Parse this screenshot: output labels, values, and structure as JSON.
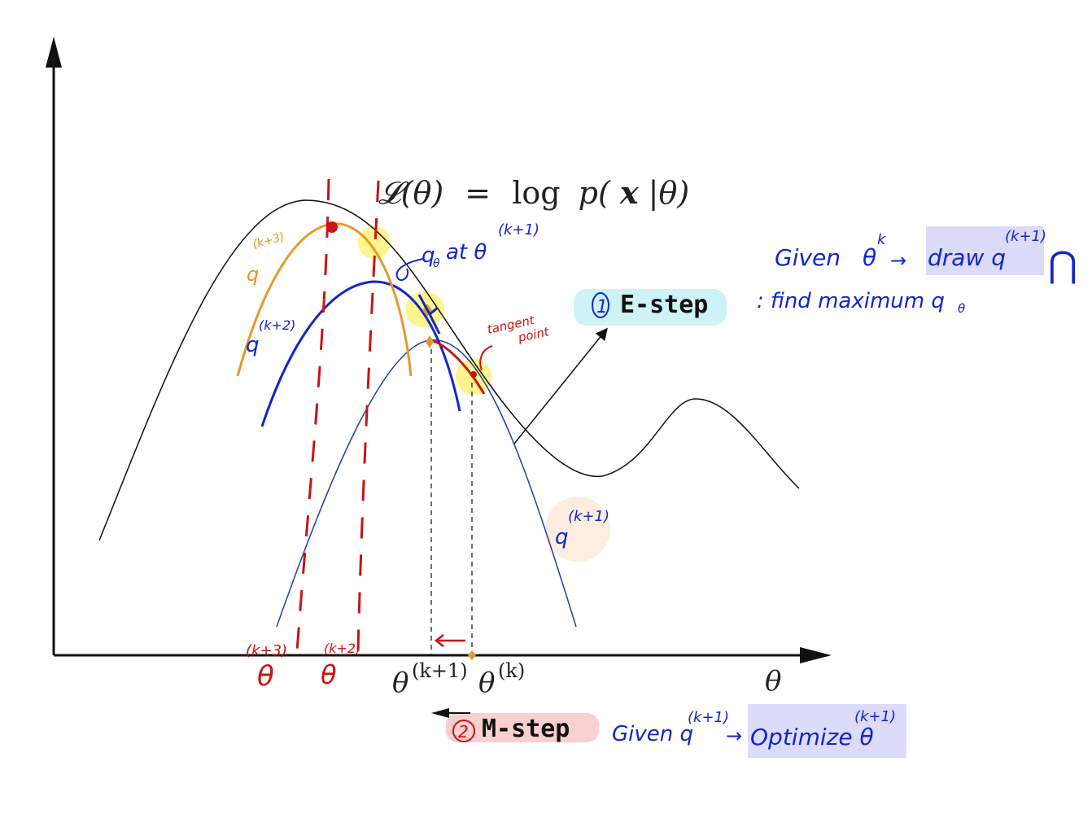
{
  "title_formula": {
    "lhs": "𝓛(θ)",
    "eq": "=",
    "rhs_log": "log",
    "rhs_p": "p(",
    "rhs_x": "x",
    "rhs_end": "|θ)"
  },
  "axes": {
    "x_label": "θ",
    "theta_k1": "θ",
    "theta_k1_sup": "(k+1)",
    "theta_k": "θ",
    "theta_k_sup": "(k)"
  },
  "e_step": {
    "number": "1",
    "label": "E-step",
    "desc": ": find maximum q",
    "q_sub": "θ",
    "given_prefix": "Given",
    "given_theta": "θ",
    "given_theta_sup": "k",
    "arrow": "→",
    "draw_text": "draw q",
    "draw_sup": "(k+1)",
    "cap_symbol": "⋂"
  },
  "m_step": {
    "number": "2",
    "label": "M-step",
    "given": "Given q",
    "given_sup": "(k+1)",
    "arrow": "→",
    "optimize": "Optimize θ",
    "optimize_sup": "(k+1)"
  },
  "annotations": {
    "q_at": "q",
    "q_at_sub": "θ",
    "q_at_mid": "at θ",
    "q_at_sup": "(k+1)",
    "tangent1": "tangent",
    "tangent2": "point",
    "q_k3": "q",
    "q_k3_sup": "(k+3)",
    "q_k2": "q",
    "q_k2_sup": "(k+2)",
    "q_k1": "q",
    "q_k1_sup": "(k+1)",
    "theta_k3": "θ",
    "theta_k3_sup": "(k+3)",
    "theta_k2": "θ",
    "theta_k2_sup": "(k+2)"
  },
  "colors": {
    "likelihood": "#111111",
    "q_blue": "#1226c9",
    "q_thin_blue": "#2a3aa8",
    "q_orange": "#e39a2a",
    "red": "#cc1212",
    "highlight_yellow": "#fff27a",
    "e_bg": "#cdf3f6",
    "m_bg": "#f8d0d0",
    "box_bg": "#dcdcfa",
    "peach": "#fbeee0"
  }
}
